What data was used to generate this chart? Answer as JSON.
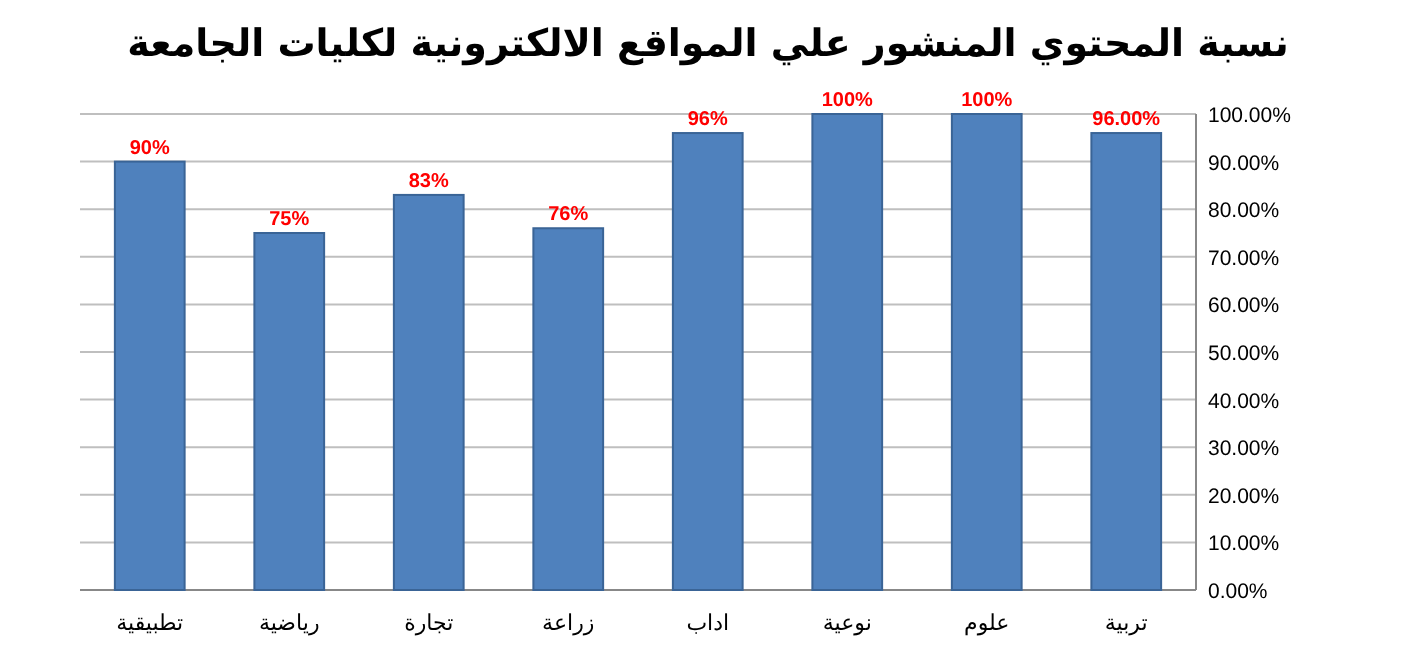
{
  "chart_data": {
    "type": "bar",
    "title": "نسبة المحتوي المنشور علي المواقع الالكترونية لكليات الجامعة",
    "categories": [
      "تطبيقية",
      "رياضية",
      "تجارة",
      "زراعة",
      "اداب",
      "نوعية",
      "علوم",
      "تربية"
    ],
    "values": [
      90,
      75,
      83,
      76,
      96,
      100,
      100,
      96
    ],
    "value_labels": [
      "90%",
      "75%",
      "83%",
      "76%",
      "96%",
      "100%",
      "100%",
      "96.00%"
    ],
    "color": "#4f81bd",
    "ylim": [
      0,
      100
    ],
    "yticks": [
      {
        "value": 0,
        "label": "0.00%"
      },
      {
        "value": 10,
        "label": "10.00%"
      },
      {
        "value": 20,
        "label": "20.00%"
      },
      {
        "value": 30,
        "label": "30.00%"
      },
      {
        "value": 40,
        "label": "40.00%"
      },
      {
        "value": 50,
        "label": "50.00%"
      },
      {
        "value": 60,
        "label": "60.00%"
      },
      {
        "value": 70,
        "label": "70.00%"
      },
      {
        "value": 80,
        "label": "80.00%"
      },
      {
        "value": 90,
        "label": "90.00%"
      },
      {
        "value": 100,
        "label": "100.00%"
      }
    ],
    "grid": "y"
  }
}
